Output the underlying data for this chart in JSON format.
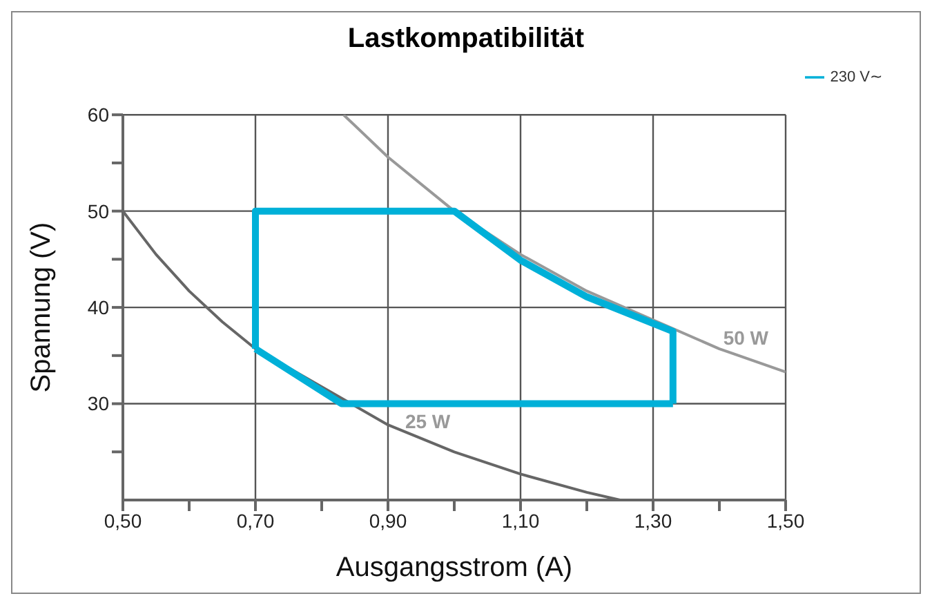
{
  "chart_data": {
    "type": "line",
    "title": "Lastkompatibilität",
    "xlabel": "Ausgangsstrom (A)",
    "ylabel": "Spannung (V)",
    "xlim": [
      0.5,
      1.5
    ],
    "xticks": [
      {
        "value": 0.5,
        "label": "0,50"
      },
      {
        "value": 0.6,
        "label": null
      },
      {
        "value": 0.7,
        "label": "0,70"
      },
      {
        "value": 0.8,
        "label": null
      },
      {
        "value": 0.9,
        "label": "0,90"
      },
      {
        "value": 1.0,
        "label": null
      },
      {
        "value": 1.1,
        "label": "1,10"
      },
      {
        "value": 1.2,
        "label": null
      },
      {
        "value": 1.3,
        "label": "1,30"
      },
      {
        "value": 1.4,
        "label": null
      },
      {
        "value": 1.5,
        "label": "1,50"
      }
    ],
    "ylim": [
      20,
      60
    ],
    "yticks": [
      {
        "value": 25,
        "label": null
      },
      30,
      {
        "value": 35,
        "label": null
      },
      40,
      {
        "value": 45,
        "label": null
      },
      50,
      {
        "value": 55,
        "label": null
      },
      60
    ],
    "grid": true,
    "legend": "top right",
    "marker": "none",
    "line_style": "solid",
    "series": [
      {
        "color": "#666666",
        "x": [
          0.5,
          0.55,
          0.6,
          0.65,
          0.7,
          0.9,
          1.0,
          1.1,
          1.2,
          1.25
        ],
        "values": [
          50,
          45.5,
          41.7,
          38.5,
          35.7,
          27.8,
          25,
          22.7,
          20.8,
          20
        ]
      },
      {
        "color": "#999999",
        "x": [
          0.833,
          0.9,
          1.0,
          1.1,
          1.2,
          1.4,
          1.5
        ],
        "values": [
          60,
          55.6,
          50,
          45.5,
          41.7,
          35.7,
          33.3
        ]
      },
      {
        "name": "230 V∼",
        "color": "#00b0d8",
        "x": [
          0.7,
          0.7,
          1.0,
          1.1,
          1.2,
          1.33,
          1.33
        ],
        "values": [
          35.7,
          50,
          50,
          44.9,
          41.1,
          37.5,
          30
        ]
      },
      {
        "color": "#00b0d8",
        "x": [
          0.7,
          0.83,
          1.33
        ],
        "values": [
          35.7,
          30,
          30
        ]
      }
    ],
    "annotations": [
      {
        "text": "25 W",
        "x": 0.96,
        "y": 26
      },
      {
        "text": "50 W",
        "x": 1.44,
        "y": 34.7
      }
    ]
  }
}
